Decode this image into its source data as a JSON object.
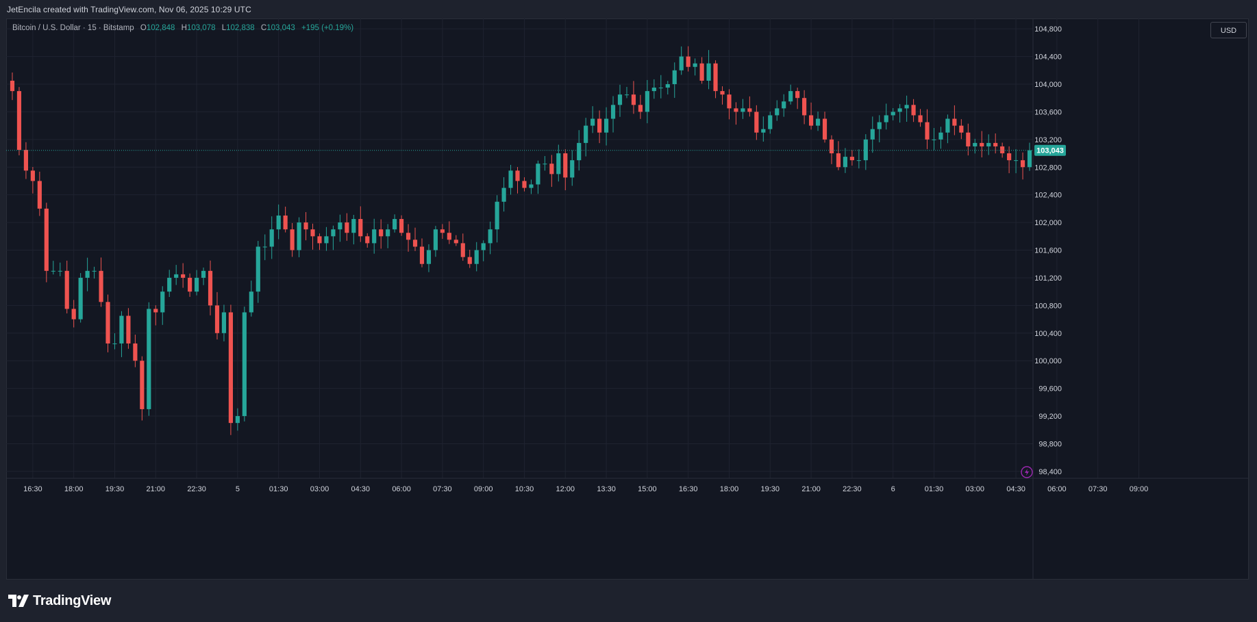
{
  "header": {
    "caption": "JetEncila created with TradingView.com, Nov 06, 2025 10:29 UTC"
  },
  "legend": {
    "symbol": "Bitcoin / U.S. Dollar · 15 · Bitstamp",
    "o_label": "O",
    "o_value": "102,848",
    "h_label": "H",
    "h_value": "103,078",
    "l_label": "L",
    "l_value": "102,838",
    "c_label": "C",
    "c_value": "103,043",
    "change": "+195 (+0.19%)"
  },
  "currency_button": "USD",
  "brand": {
    "name": "TradingView",
    "icon": "tradingview-logo-icon"
  },
  "colors": {
    "up": "#26a69a",
    "down": "#ef5350",
    "background": "#131722",
    "grid": "#1f2330",
    "last_price": "#26a69a"
  },
  "chart_data": {
    "type": "candlestick",
    "title": "Bitcoin / U.S. Dollar · 15 · Bitstamp",
    "interval": "15",
    "ylim": [
      98300,
      104950
    ],
    "y_ticks": [
      98400,
      98800,
      99200,
      99600,
      100000,
      100400,
      100800,
      101200,
      101600,
      102000,
      102400,
      102800,
      103200,
      103600,
      104000,
      104400,
      104800
    ],
    "y_tick_labels": [
      "98,400",
      "98,800",
      "99,200",
      "99,600",
      "100,000",
      "100,400",
      "100,800",
      "101,200",
      "101,600",
      "102,000",
      "102,400",
      "102,800",
      "103,200",
      "103,600",
      "104,000",
      "104,400",
      "104,800"
    ],
    "x_tick_labels": [
      {
        "label": "16:30",
        "bar": 3
      },
      {
        "label": "18:00",
        "bar": 9
      },
      {
        "label": "19:30",
        "bar": 15
      },
      {
        "label": "21:00",
        "bar": 21
      },
      {
        "label": "22:30",
        "bar": 27
      },
      {
        "label": "5",
        "bar": 33
      },
      {
        "label": "01:30",
        "bar": 39
      },
      {
        "label": "03:00",
        "bar": 45
      },
      {
        "label": "04:30",
        "bar": 51
      },
      {
        "label": "06:00",
        "bar": 57
      },
      {
        "label": "07:30",
        "bar": 63
      },
      {
        "label": "09:00",
        "bar": 69
      },
      {
        "label": "10:30",
        "bar": 75
      },
      {
        "label": "12:00",
        "bar": 81
      },
      {
        "label": "13:30",
        "bar": 87
      },
      {
        "label": "15:00",
        "bar": 93
      },
      {
        "label": "16:30",
        "bar": 99
      },
      {
        "label": "18:00",
        "bar": 105
      },
      {
        "label": "19:30",
        "bar": 111
      },
      {
        "label": "21:00",
        "bar": 117
      },
      {
        "label": "22:30",
        "bar": 123
      },
      {
        "label": "6",
        "bar": 129
      },
      {
        "label": "01:30",
        "bar": 135
      },
      {
        "label": "03:00",
        "bar": 141
      },
      {
        "label": "04:30",
        "bar": 147
      },
      {
        "label": "06:00",
        "bar": 153
      },
      {
        "label": "07:30",
        "bar": 159
      },
      {
        "label": "09:00",
        "bar": 165
      }
    ],
    "last_price": 103043,
    "last_price_label": "103,043",
    "close_path": [
      103900,
      103050,
      102750,
      102600,
      102200,
      101300,
      101300,
      101300,
      100750,
      100600,
      101200,
      101300,
      101300,
      100850,
      100250,
      100250,
      100650,
      100250,
      100000,
      99300,
      100750,
      100700,
      101000,
      101200,
      101250,
      101200,
      101000,
      101200,
      101300,
      100800,
      100400,
      100700,
      99100,
      99200,
      100700,
      101000,
      101650,
      101650,
      101900,
      102100,
      101900,
      101600,
      102000,
      101900,
      101800,
      101700,
      101800,
      101900,
      102000,
      101850,
      102050,
      101800,
      101700,
      101900,
      101800,
      101900,
      102050,
      101850,
      101750,
      101650,
      101400,
      101600,
      101900,
      101850,
      101750,
      101700,
      101500,
      101400,
      101600,
      101700,
      101900,
      102300,
      102500,
      102750,
      102600,
      102500,
      102550,
      102850,
      102850,
      102700,
      103000,
      102650,
      102900,
      103150,
      103400,
      103500,
      103300,
      103500,
      103700,
      103850,
      103850,
      103700,
      103600,
      103900,
      103950,
      103950,
      104000,
      104200,
      104400,
      104250,
      104300,
      104050,
      104300,
      103900,
      103850,
      103650,
      103600,
      103650,
      103600,
      103300,
      103350,
      103550,
      103650,
      103750,
      103900,
      103800,
      103550,
      103400,
      103500,
      103200,
      103000,
      102800,
      102950,
      102900,
      102900,
      103200,
      103350,
      103450,
      103550,
      103600,
      103650,
      103700,
      103550,
      103450,
      103200,
      103200,
      103300,
      103500,
      103400,
      103300,
      103100,
      103150,
      103100,
      103150,
      103100,
      103000,
      102900,
      102900,
      102800,
      103043
    ]
  }
}
